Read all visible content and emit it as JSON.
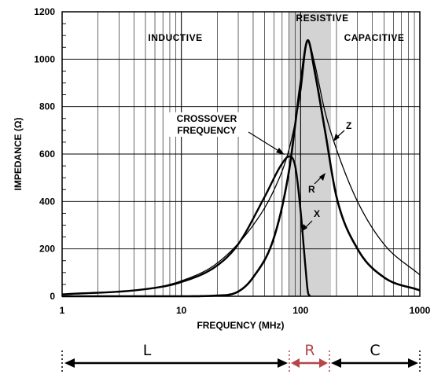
{
  "chart_data": {
    "type": "line",
    "xlabel": "FREQUENCY (MHz)",
    "ylabel": "IMPEDANCE (Ω)",
    "xscale": "log",
    "xlim": [
      1,
      1000
    ],
    "ylim": [
      0,
      1200
    ],
    "x_ticks": [
      "1",
      "10",
      "100",
      "1000"
    ],
    "y_ticks": [
      "0",
      "200",
      "400",
      "600",
      "800",
      "1000",
      "1200"
    ],
    "grid": true,
    "series": [
      {
        "name": "Z",
        "x": [
          1,
          5,
          10,
          20,
          40,
          60,
          80,
          100,
          115,
          130,
          160,
          200,
          300,
          500,
          1000
        ],
        "values": [
          8,
          30,
          65,
          140,
          300,
          450,
          620,
          860,
          1080,
          990,
          780,
          620,
          400,
          220,
          90
        ]
      },
      {
        "name": "R",
        "x": [
          1,
          10,
          20,
          30,
          40,
          60,
          80,
          100,
          115,
          130,
          160,
          200,
          300,
          500,
          1000
        ],
        "values": [
          0,
          0,
          3,
          20,
          80,
          250,
          530,
          900,
          1080,
          960,
          700,
          420,
          200,
          80,
          25
        ]
      },
      {
        "name": "X",
        "x": [
          1,
          5,
          10,
          20,
          30,
          50,
          70,
          80,
          90,
          100,
          110,
          115,
          120
        ],
        "values": [
          8,
          30,
          60,
          130,
          220,
          420,
          560,
          590,
          550,
          360,
          120,
          20,
          0
        ]
      }
    ],
    "regions": [
      {
        "label": "INDUCTIVE"
      },
      {
        "label": "RESISTIVE",
        "x_range": [
          80,
          180
        ]
      },
      {
        "label": "CAPACITIVE"
      }
    ],
    "annotations": [
      {
        "label": "CROSSOVER FREQUENCY",
        "x": 80,
        "y": 590
      },
      {
        "label": "Z",
        "x": 185,
        "y": 640
      },
      {
        "label": "R",
        "x": 170,
        "y": 500
      },
      {
        "label": "X",
        "x": 110,
        "y": 290
      }
    ],
    "bands": [
      {
        "label": "L",
        "color": "#000000"
      },
      {
        "label": "R",
        "color": "#b5474b"
      },
      {
        "label": "C",
        "color": "#000000"
      }
    ]
  }
}
